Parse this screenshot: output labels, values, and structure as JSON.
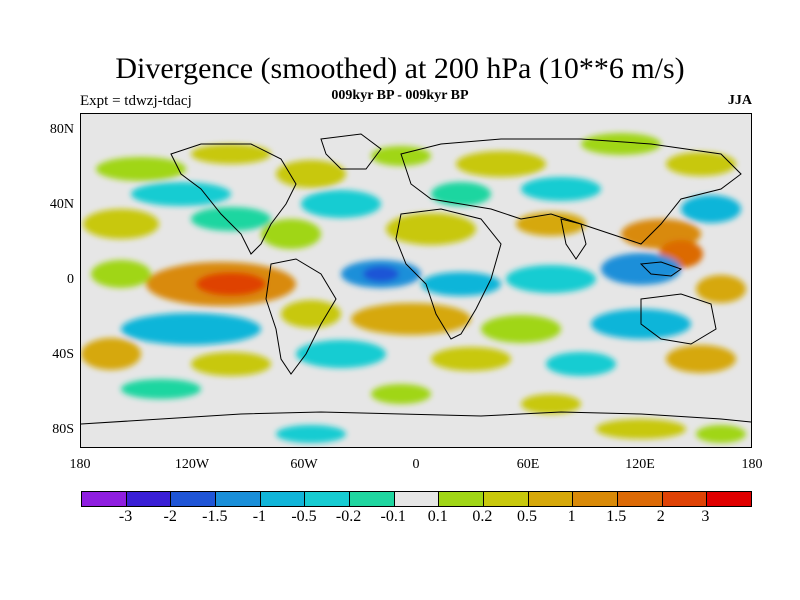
{
  "title": "Divergence (smoothed) at 200 hPa (10**6 m/s)",
  "subtitle": "009kyr BP - 009kyr BP",
  "left_label": "Expt = tdwzj-tdacj",
  "right_label": "JJA",
  "lat_ticks": [
    "80N",
    "40N",
    "0",
    "40S",
    "80S"
  ],
  "lon_ticks": [
    "180",
    "120W",
    "60W",
    "0",
    "60E",
    "120E",
    "180"
  ],
  "colorbar": {
    "colors": [
      "#8f1ee0",
      "#3a1fd6",
      "#1f55d6",
      "#1a8fd9",
      "#11b5d9",
      "#17ccd2",
      "#1fd6a0",
      "#e6e6e6",
      "#a0d616",
      "#c8c80c",
      "#d6a80a",
      "#d98a08",
      "#dc6a06",
      "#df4205",
      "#e00000"
    ],
    "labels": [
      "-3",
      "-2",
      "-1.5",
      "-1",
      "-0.5",
      "-0.2",
      "-0.1",
      "0.1",
      "0.2",
      "0.5",
      "1",
      "1.5",
      "2",
      "3"
    ]
  }
}
